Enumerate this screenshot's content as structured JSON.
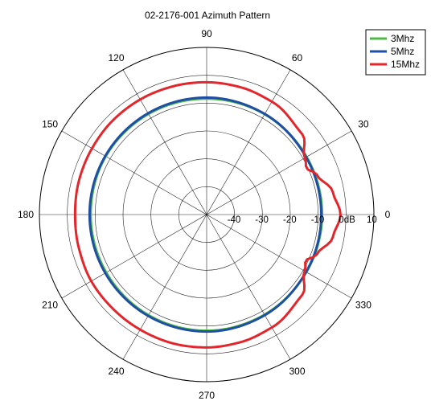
{
  "chart_data": {
    "type": "polar-line",
    "title": "02-2176-001 Azimuth Pattern",
    "angle_ticks": [
      "0",
      "30",
      "60",
      "90",
      "120",
      "150",
      "180",
      "210",
      "240",
      "270",
      "300",
      "330"
    ],
    "radial_ticks": [
      "-40",
      "-30",
      "-20",
      "-10",
      "0dB",
      "10"
    ],
    "radial_range": [
      -50,
      10
    ],
    "grid": true,
    "legend_position": "top-right",
    "series": [
      {
        "name": "3Mhz",
        "color": "#4db848",
        "angles_deg": [
          0,
          30,
          60,
          90,
          120,
          150,
          180,
          210,
          240,
          270,
          300,
          330,
          360
        ],
        "values_db": [
          -8.6,
          -8.6,
          -8.4,
          -8.4,
          -8.3,
          -8.2,
          -8.4,
          -8.4,
          -8.3,
          -8.3,
          -8.5,
          -8.7,
          -8.6
        ]
      },
      {
        "name": "5Mhz",
        "color": "#1f4fa3",
        "angles_deg": [
          0,
          30,
          60,
          90,
          120,
          150,
          180,
          210,
          240,
          270,
          300,
          330,
          360
        ],
        "values_db": [
          -8.9,
          -8.8,
          -8.3,
          -8.0,
          -8.0,
          -8.0,
          -8.0,
          -8.0,
          -8.0,
          -8.0,
          -8.3,
          -8.8,
          -8.9
        ]
      },
      {
        "name": "15Mhz",
        "color": "#e3262b",
        "angles_deg": [
          0,
          10,
          20,
          25,
          30,
          40,
          60,
          75,
          90,
          105,
          120,
          135,
          150,
          165,
          180,
          195,
          210,
          225,
          240,
          255,
          270,
          285,
          300,
          320,
          330,
          335,
          340,
          350,
          360
        ],
        "values_db": [
          -2.0,
          -4.0,
          -8.0,
          -10.5,
          -9.3,
          -5.2,
          -3.2,
          -2.7,
          -2.5,
          -2.4,
          -2.3,
          -2.3,
          -2.5,
          -2.6,
          -2.8,
          -2.6,
          -2.2,
          -2.3,
          -2.3,
          -2.2,
          -2.3,
          -2.6,
          -3.2,
          -5.2,
          -9.4,
          -10.8,
          -8.0,
          -4.0,
          -2.0
        ]
      }
    ]
  }
}
